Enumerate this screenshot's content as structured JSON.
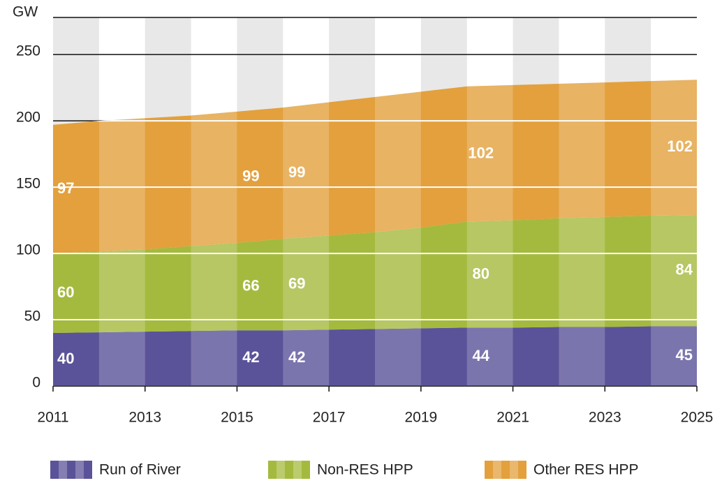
{
  "chart_data": {
    "type": "stacked_area",
    "y_label": "GW",
    "x": [
      2011,
      2012,
      2013,
      2014,
      2015,
      2016,
      2017,
      2018,
      2019,
      2020,
      2021,
      2022,
      2023,
      2024,
      2025
    ],
    "xlim": [
      2011,
      2025
    ],
    "xticks": [
      2011,
      2013,
      2015,
      2017,
      2019,
      2021,
      2023,
      2025
    ],
    "ylim": [
      0,
      278
    ],
    "yticks": [
      0,
      50,
      100,
      150,
      200,
      250
    ],
    "grid": true,
    "legend": "bottom",
    "series": [
      {
        "name": "Run of River",
        "color": "#5b5399",
        "values": [
          40,
          40.5,
          41,
          41.5,
          42,
          42,
          42.5,
          43,
          43.5,
          44,
          44,
          44.5,
          44.5,
          45,
          45
        ]
      },
      {
        "name": "Non-RES HPP",
        "color": "#a4ba3e",
        "values": [
          60,
          61,
          62,
          64,
          66,
          69,
          71,
          73,
          76,
          80,
          81,
          82,
          83,
          83.5,
          84
        ]
      },
      {
        "name": "Other RES HPP",
        "color": "#e3a03c",
        "values": [
          97,
          98.5,
          99,
          98.5,
          99,
          99,
          100.5,
          102,
          102.5,
          102,
          102,
          101.5,
          101.5,
          101.5,
          102
        ]
      }
    ]
  }
}
